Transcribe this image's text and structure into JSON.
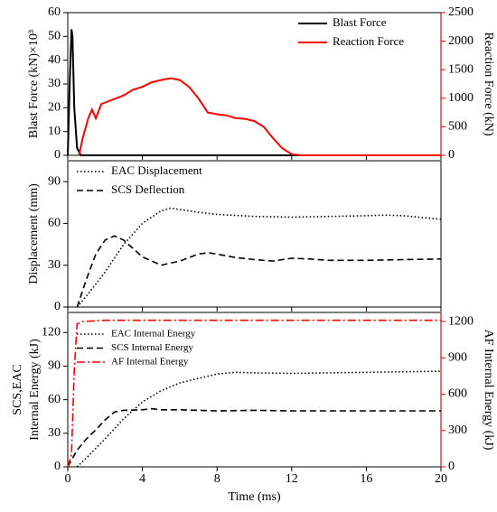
{
  "chart_data": [
    {
      "type": "line",
      "xlim": [
        0,
        20
      ],
      "xticks": [
        0,
        4,
        8,
        12,
        16,
        20
      ],
      "ylim": [
        0,
        60
      ],
      "yticks": [
        0,
        10,
        20,
        30,
        40,
        50,
        60
      ],
      "y2lim": [
        0,
        2500
      ],
      "y2ticks": [
        0,
        500,
        1000,
        1500,
        2000,
        2500
      ],
      "y2color": "#ff0000",
      "ylabel": [
        "Blast Force (kN)×10³"
      ],
      "y2label": "Reaction Force (kN)",
      "legend": "upper right",
      "series": [
        {
          "name": "Blast Force",
          "color": "#000000",
          "style": "solid",
          "x": [
            0,
            0.1,
            0.2,
            0.25,
            0.35,
            0.5,
            0.7,
            1,
            20
          ],
          "values": [
            0,
            30,
            53,
            50,
            20,
            3,
            0,
            0,
            0
          ]
        },
        {
          "name": "Reaction Force",
          "color": "#ff0000",
          "style": "solid",
          "axis": "y2",
          "x": [
            0.6,
            0.8,
            1.1,
            1.3,
            1.5,
            1.8,
            2.2,
            2.6,
            3,
            3.5,
            4,
            4.5,
            5,
            5.5,
            6,
            6.5,
            7,
            7.5,
            8,
            8.5,
            9,
            9.5,
            10,
            10.5,
            11,
            11.5,
            12,
            12.5,
            20
          ],
          "values": [
            0,
            300,
            650,
            800,
            650,
            900,
            950,
            1000,
            1050,
            1150,
            1200,
            1280,
            1320,
            1350,
            1320,
            1200,
            1000,
            750,
            720,
            700,
            650,
            640,
            600,
            500,
            300,
            120,
            20,
            0,
            0
          ]
        }
      ]
    },
    {
      "type": "line",
      "xlim": [
        0,
        20
      ],
      "xticks": [
        0,
        4,
        8,
        12,
        16,
        20
      ],
      "ylim": [
        0,
        105
      ],
      "yticks": [
        0,
        30,
        60,
        90
      ],
      "ylabel": [
        "Displacement (mm)"
      ],
      "legend": "upper left",
      "series": [
        {
          "name": "EAC Displacement",
          "color": "#000000",
          "style": "dot",
          "x": [
            0.5,
            1,
            2,
            3,
            4,
            5,
            5.5,
            6,
            7,
            8,
            10,
            12,
            14,
            16,
            17,
            18,
            20
          ],
          "values": [
            0,
            8,
            25,
            45,
            60,
            69,
            71,
            70,
            68,
            66.5,
            65,
            64.5,
            65,
            65.5,
            66,
            65.5,
            63
          ]
        },
        {
          "name": "SCS Deflection",
          "color": "#000000",
          "style": "dash",
          "x": [
            0.5,
            1,
            1.5,
            2,
            2.5,
            3,
            3.5,
            4,
            5,
            6,
            7,
            7.5,
            8,
            9,
            10,
            11,
            12,
            13,
            14,
            16,
            18,
            20
          ],
          "values": [
            0,
            20,
            38,
            48,
            51,
            48,
            42,
            36,
            30,
            33,
            38,
            39,
            38,
            35.5,
            34,
            33,
            35,
            34.5,
            33.5,
            33.5,
            34,
            34.5
          ]
        }
      ]
    },
    {
      "type": "line",
      "xlim": [
        0,
        20
      ],
      "xticks": [
        0,
        4,
        8,
        12,
        16,
        20
      ],
      "ylim": [
        0,
        138
      ],
      "yticks": [
        0,
        30,
        60,
        90,
        120
      ],
      "y2lim": [
        0,
        1275
      ],
      "y2ticks": [
        0,
        300,
        600,
        900,
        1200
      ],
      "y2color": "#ff0000",
      "ylabel": [
        "SCS,EAC",
        "Internal Energy (kJ)"
      ],
      "y2label": "AF Internal Energy (kJ)",
      "xlabel": "Time (ms)",
      "legend": "upper left",
      "series": [
        {
          "name": "EAC Internal Energy",
          "color": "#000000",
          "style": "dot",
          "x": [
            0.5,
            1,
            2,
            3,
            4,
            5,
            6,
            7,
            8,
            9,
            10,
            12,
            14,
            16,
            18,
            20
          ],
          "values": [
            0,
            8,
            25,
            43,
            58,
            68,
            75,
            79,
            83,
            84.5,
            84,
            83.5,
            84,
            84.5,
            85,
            85.5
          ]
        },
        {
          "name": "SCS Internal Energy",
          "color": "#000000",
          "style": "dash",
          "x": [
            0,
            0.5,
            1,
            1.5,
            2,
            2.5,
            3,
            4,
            4.5,
            5,
            6,
            8,
            10,
            12,
            14,
            16,
            18,
            20
          ],
          "values": [
            0,
            15,
            25,
            33,
            42,
            49,
            50.5,
            51,
            52,
            51,
            51,
            50,
            50.5,
            50,
            50,
            50,
            50,
            50
          ]
        },
        {
          "name": "AF Internal Energy",
          "color": "#ff0000",
          "style": "dashdot",
          "axis": "y2",
          "x": [
            0,
            0.2,
            0.35,
            0.5,
            0.8,
            2,
            20
          ],
          "values": [
            0,
            100,
            800,
            1180,
            1200,
            1210,
            1210
          ]
        }
      ]
    }
  ]
}
